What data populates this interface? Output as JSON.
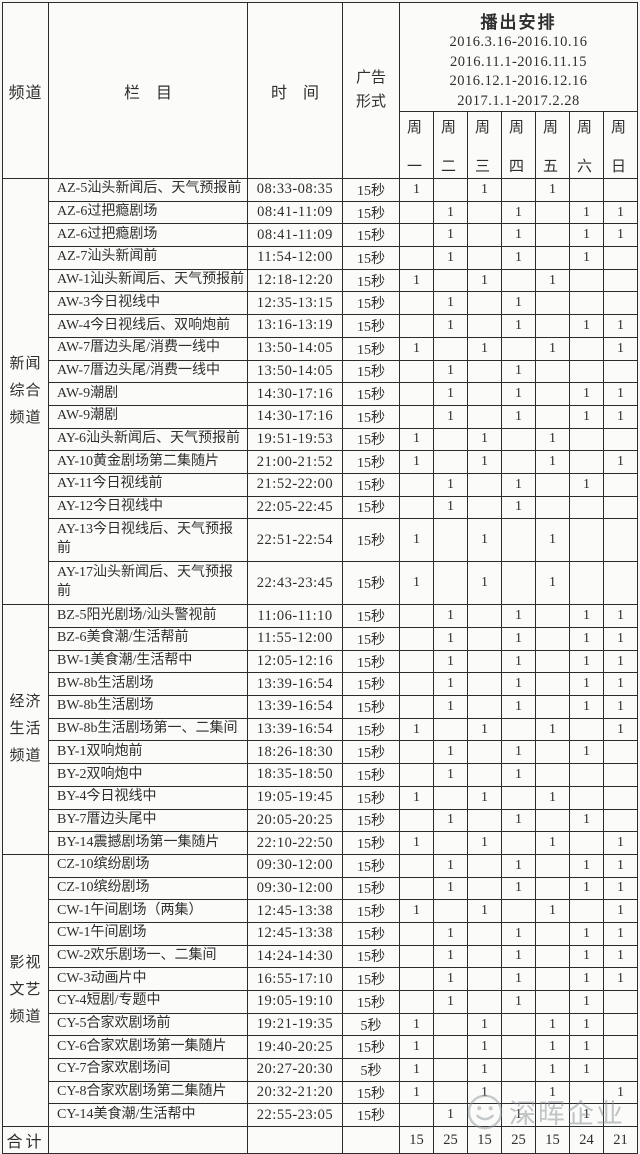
{
  "header": {
    "channel": "频道",
    "program": "栏　目",
    "time": "时　间",
    "ad_format_line1": "广告",
    "ad_format_line2": "形式",
    "schedule_title": "播出安排",
    "date_ranges": [
      "2016.3.16-2016.10.16",
      "2016.11.1-2016.11.15",
      "2016.12.1-2016.12.16",
      "2017.1.1-2017.2.28"
    ],
    "weekday_prefix": "周",
    "weekdays": [
      "一",
      "二",
      "三",
      "四",
      "五",
      "六",
      "日"
    ]
  },
  "channels": [
    {
      "name": "新闻综合频道",
      "lines": [
        "新闻",
        "综合",
        "频道"
      ],
      "row_span": 17
    },
    {
      "name": "经济生活频道",
      "lines": [
        "经济",
        "生活",
        "频道"
      ],
      "row_span": 11
    },
    {
      "name": "影视文艺频道",
      "lines": [
        "影视",
        "文艺",
        "频道"
      ],
      "row_span": 12
    }
  ],
  "rows": [
    {
      "program": "AZ-5汕头新闻后、天气预报前",
      "time": "08:33-08:35",
      "ad": "15秒",
      "week": [
        "1",
        "",
        "1",
        "",
        "1",
        "",
        ""
      ]
    },
    {
      "program": "AZ-6过把瘾剧场",
      "time": "08:41-11:09",
      "ad": "15秒",
      "week": [
        "",
        "1",
        "",
        "1",
        "",
        "1",
        "1"
      ]
    },
    {
      "program": "AZ-6过把瘾剧场",
      "time": "08:41-11:09",
      "ad": "15秒",
      "week": [
        "",
        "1",
        "",
        "1",
        "",
        "1",
        "1"
      ]
    },
    {
      "program": "AZ-7汕头新闻前",
      "time": "11:54-12:00",
      "ad": "15秒",
      "week": [
        "",
        "1",
        "",
        "1",
        "",
        "1",
        ""
      ]
    },
    {
      "program": "AW-1汕头新闻后、天气预报前",
      "time": "12:18-12:20",
      "ad": "15秒",
      "week": [
        "1",
        "",
        "1",
        "",
        "1",
        "",
        ""
      ]
    },
    {
      "program": "AW-3今日视线中",
      "time": "12:35-13:15",
      "ad": "15秒",
      "week": [
        "",
        "1",
        "",
        "1",
        "",
        "",
        ""
      ]
    },
    {
      "program": "AW-4今日视线后、双响炮前",
      "time": "13:16-13:19",
      "ad": "15秒",
      "week": [
        "",
        "1",
        "",
        "1",
        "",
        "1",
        "1"
      ]
    },
    {
      "program": "AW-7厝边头尾/消费一线中",
      "time": "13:50-14:05",
      "ad": "15秒",
      "week": [
        "1",
        "",
        "1",
        "",
        "1",
        "",
        "1"
      ]
    },
    {
      "program": "AW-7厝边头尾/消费一线中",
      "time": "13:50-14:05",
      "ad": "15秒",
      "week": [
        "",
        "1",
        "",
        "1",
        "",
        "",
        ""
      ]
    },
    {
      "program": "AW-9潮剧",
      "time": "14:30-17:16",
      "ad": "15秒",
      "week": [
        "",
        "1",
        "",
        "1",
        "",
        "1",
        "1"
      ]
    },
    {
      "program": "AW-9潮剧",
      "time": "14:30-17:16",
      "ad": "15秒",
      "week": [
        "",
        "1",
        "",
        "1",
        "",
        "1",
        "1"
      ]
    },
    {
      "program": "AY-6汕头新闻后、天气预报前",
      "time": "19:51-19:53",
      "ad": "15秒",
      "week": [
        "1",
        "",
        "1",
        "",
        "1",
        "",
        ""
      ]
    },
    {
      "program": "AY-10黄金剧场第二集随片",
      "time": "21:00-21:52",
      "ad": "15秒",
      "week": [
        "1",
        "",
        "1",
        "",
        "1",
        "",
        "1"
      ]
    },
    {
      "program": "AY-11今日视线前",
      "time": "21:52-22:00",
      "ad": "15秒",
      "week": [
        "",
        "1",
        "",
        "1",
        "",
        "1",
        ""
      ]
    },
    {
      "program": "AY-12今日视线中",
      "time": "22:05-22:45",
      "ad": "15秒",
      "week": [
        "",
        "1",
        "",
        "1",
        "",
        "",
        ""
      ]
    },
    {
      "program": "AY-13今日视线后、天气预报",
      "program_line2": "前",
      "time": "22:51-22:54",
      "ad": "15秒",
      "week": [
        "1",
        "",
        "1",
        "",
        "1",
        "",
        ""
      ]
    },
    {
      "program": "AY-17汕头新闻后、天气预报",
      "program_line2": "前",
      "time": "22:43-23:45",
      "ad": "15秒",
      "week": [
        "1",
        "",
        "1",
        "",
        "1",
        "",
        ""
      ]
    },
    {
      "program": "BZ-5阳光剧场/汕头警视前",
      "time": "11:06-11:10",
      "ad": "15秒",
      "week": [
        "",
        "1",
        "",
        "1",
        "",
        "1",
        "1"
      ]
    },
    {
      "program": "BZ-6美食潮/生活帮前",
      "time": "11:55-12:00",
      "ad": "15秒",
      "week": [
        "",
        "1",
        "",
        "1",
        "",
        "1",
        "1"
      ]
    },
    {
      "program": "BW-1美食潮/生活帮中",
      "time": "12:05-12:16",
      "ad": "15秒",
      "week": [
        "",
        "1",
        "",
        "1",
        "",
        "1",
        "1"
      ]
    },
    {
      "program": "BW-8b生活剧场",
      "time": "13:39-16:54",
      "ad": "15秒",
      "week": [
        "",
        "1",
        "",
        "1",
        "",
        "1",
        "1"
      ]
    },
    {
      "program": "BW-8b生活剧场",
      "time": "13:39-16:54",
      "ad": "15秒",
      "week": [
        "",
        "1",
        "",
        "1",
        "",
        "1",
        "1"
      ]
    },
    {
      "program": "BW-8b生活剧场第一、二集间",
      "time": "13:39-16:54",
      "ad": "15秒",
      "week": [
        "1",
        "",
        "1",
        "",
        "1",
        "",
        "1"
      ]
    },
    {
      "program": "BY-1双响炮前",
      "time": "18:26-18:30",
      "ad": "15秒",
      "week": [
        "",
        "1",
        "",
        "1",
        "",
        "1",
        ""
      ]
    },
    {
      "program": "BY-2双响炮中",
      "time": "18:35-18:50",
      "ad": "15秒",
      "week": [
        "",
        "1",
        "",
        "1",
        "",
        "",
        ""
      ]
    },
    {
      "program": "BY-4今日视线中",
      "time": "19:05-19:45",
      "ad": "15秒",
      "week": [
        "1",
        "",
        "1",
        "",
        "1",
        "",
        ""
      ]
    },
    {
      "program": "BY-7厝边头尾中",
      "time": "20:05-20:25",
      "ad": "15秒",
      "week": [
        "",
        "1",
        "",
        "1",
        "",
        "1",
        ""
      ]
    },
    {
      "program": "BY-14震撼剧场第一集随片",
      "time": "22:10-22:50",
      "ad": "15秒",
      "week": [
        "1",
        "",
        "1",
        "",
        "1",
        "",
        "1"
      ]
    },
    {
      "program": "CZ-10缤纷剧场",
      "time": "09:30-12:00",
      "ad": "15秒",
      "week": [
        "",
        "1",
        "",
        "1",
        "",
        "1",
        "1"
      ]
    },
    {
      "program": "CZ-10缤纷剧场",
      "time": "09:30-12:00",
      "ad": "15秒",
      "week": [
        "",
        "1",
        "",
        "1",
        "",
        "1",
        "1"
      ]
    },
    {
      "program": "CW-1午间剧场（两集）",
      "time": "12:45-13:38",
      "ad": "15秒",
      "week": [
        "1",
        "",
        "1",
        "",
        "1",
        "",
        "1"
      ]
    },
    {
      "program": "CW-1午间剧场",
      "time": "12:45-13:38",
      "ad": "15秒",
      "week": [
        "",
        "1",
        "",
        "1",
        "",
        "1",
        "1"
      ]
    },
    {
      "program": "CW-2欢乐剧场一、二集间",
      "time": "14:24-14:30",
      "ad": "15秒",
      "week": [
        "",
        "1",
        "",
        "1",
        "",
        "1",
        "1"
      ]
    },
    {
      "program": "CW-3动画片中",
      "time": "16:55-17:10",
      "ad": "15秒",
      "week": [
        "",
        "1",
        "",
        "1",
        "",
        "1",
        "1"
      ]
    },
    {
      "program": "CY-4短剧/专题中",
      "time": "19:05-19:10",
      "ad": "15秒",
      "week": [
        "",
        "1",
        "",
        "1",
        "",
        "1",
        ""
      ]
    },
    {
      "program": "CY-5合家欢剧场前",
      "time": "19:21-19:35",
      "ad": "5秒",
      "week": [
        "1",
        "",
        "1",
        "",
        "1",
        "1",
        ""
      ]
    },
    {
      "program": "CY-6合家欢剧场第一集随片",
      "time": "19:40-20:25",
      "ad": "15秒",
      "week": [
        "1",
        "",
        "1",
        "",
        "1",
        "1",
        ""
      ]
    },
    {
      "program": "CY-7合家欢剧场间",
      "time": "20:27-20:30",
      "ad": "5秒",
      "week": [
        "1",
        "",
        "1",
        "",
        "1",
        "1",
        ""
      ]
    },
    {
      "program": "CY-8合家欢剧场第二集随片",
      "time": "20:32-21:20",
      "ad": "15秒",
      "week": [
        "1",
        "",
        "1",
        "",
        "1",
        "",
        "1"
      ]
    },
    {
      "program": "CY-14美食潮/生活帮中",
      "time": "22:55-23:05",
      "ad": "15秒",
      "week": [
        "",
        "1",
        "",
        "1",
        "",
        "1",
        ""
      ]
    }
  ],
  "totals": {
    "label": "合计",
    "values": [
      "15",
      "25",
      "15",
      "25",
      "15",
      "24",
      "21"
    ]
  },
  "watermark": {
    "text": "深晖企业"
  }
}
